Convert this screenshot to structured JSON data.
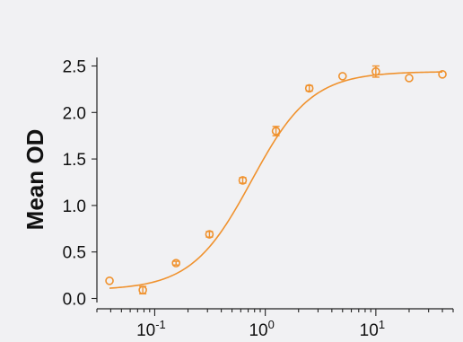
{
  "chart_data": {
    "type": "scatter",
    "title": "",
    "xlabel": "",
    "ylabel": "Mean OD",
    "xscale": "log",
    "xlim": [
      0.03,
      50
    ],
    "ylim": [
      0,
      2.6
    ],
    "x_ticks": [
      {
        "value": 0.1,
        "base": "10",
        "exp": "-1"
      },
      {
        "value": 1,
        "base": "10",
        "exp": "0"
      },
      {
        "value": 10,
        "base": "10",
        "exp": "1"
      }
    ],
    "y_ticks": [
      {
        "value": 0.0,
        "label": "0.0"
      },
      {
        "value": 0.5,
        "label": "0.5"
      },
      {
        "value": 1.0,
        "label": "1.0"
      },
      {
        "value": 1.5,
        "label": "1.5"
      },
      {
        "value": 2.0,
        "label": "2.0"
      },
      {
        "value": 2.5,
        "label": "2.5"
      }
    ],
    "grid": false,
    "legend": "none",
    "color": "#f0922e",
    "series": [
      {
        "points": [
          {
            "x": 0.039,
            "y": 0.19,
            "err": 0.0
          },
          {
            "x": 0.078,
            "y": 0.09,
            "err": 0.04
          },
          {
            "x": 0.156,
            "y": 0.38,
            "err": 0.02
          },
          {
            "x": 0.3125,
            "y": 0.69,
            "err": 0.03
          },
          {
            "x": 0.625,
            "y": 1.27,
            "err": 0.03
          },
          {
            "x": 1.25,
            "y": 1.8,
            "err": 0.05
          },
          {
            "x": 2.5,
            "y": 2.26,
            "err": 0.03
          },
          {
            "x": 5,
            "y": 2.39,
            "err": 0.0
          },
          {
            "x": 10,
            "y": 2.44,
            "err": 0.06
          },
          {
            "x": 20,
            "y": 2.37,
            "err": 0.0
          },
          {
            "x": 40,
            "y": 2.41,
            "err": 0.0
          }
        ],
        "fit": {
          "model": "4PL",
          "bottom": 0.09,
          "top": 2.44,
          "ec50": 0.75,
          "hill": 1.6
        }
      }
    ]
  }
}
